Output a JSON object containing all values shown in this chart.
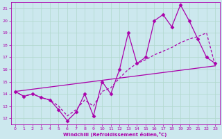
{
  "xlabel": "Windchill (Refroidissement éolien,°C)",
  "xlim": [
    -0.5,
    23.5
  ],
  "ylim": [
    11.5,
    21.5
  ],
  "yticks": [
    12,
    13,
    14,
    15,
    16,
    17,
    18,
    19,
    20,
    21
  ],
  "xticks": [
    0,
    1,
    2,
    3,
    4,
    5,
    6,
    7,
    8,
    9,
    10,
    11,
    12,
    13,
    14,
    15,
    16,
    17,
    18,
    19,
    20,
    21,
    22,
    23
  ],
  "bg_color": "#cce8ee",
  "grid_color": "#b0d8cc",
  "line_color": "#aa00aa",
  "line1_x": [
    0,
    1,
    2,
    3,
    4,
    5,
    6,
    7,
    8,
    9,
    10,
    11,
    12,
    13,
    14,
    15,
    16,
    17,
    18,
    19,
    20,
    21,
    22,
    23
  ],
  "line1_y": [
    14.2,
    13.8,
    14.0,
    13.7,
    13.5,
    12.7,
    11.8,
    12.5,
    14.0,
    12.2,
    15.0,
    14.0,
    16.0,
    19.0,
    16.5,
    17.0,
    20.0,
    20.5,
    19.5,
    21.3,
    20.0,
    18.5,
    17.0,
    16.5
  ],
  "line2_x": [
    0,
    1,
    2,
    3,
    4,
    5,
    6,
    7,
    8,
    9,
    10,
    11,
    12,
    13,
    14,
    15,
    16,
    17,
    18,
    19,
    20,
    21,
    22,
    23
  ],
  "line2_y": [
    14.2,
    13.8,
    14.0,
    13.7,
    13.5,
    13.0,
    12.2,
    12.7,
    13.5,
    13.0,
    14.2,
    14.5,
    15.3,
    16.0,
    16.5,
    16.8,
    17.2,
    17.5,
    17.8,
    18.2,
    18.5,
    18.7,
    19.0,
    16.3
  ],
  "line3_x": [
    0,
    23
  ],
  "line3_y": [
    14.2,
    16.3
  ],
  "figsize": [
    3.2,
    2.0
  ],
  "dpi": 100
}
